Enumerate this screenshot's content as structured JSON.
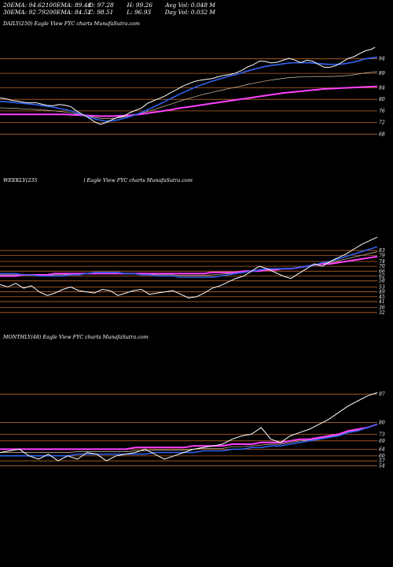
{
  "stats": [
    [
      {
        "label": "20EMA:",
        "value": "94.62"
      },
      {
        "label": "100EMA:",
        "value": "89.48"
      },
      {
        "label": "O:",
        "value": "97.28"
      },
      {
        "label": "H:",
        "value": "99.26"
      },
      {
        "label": "Avg Vol:",
        "value": "0.048 M"
      }
    ],
    [
      {
        "label": "30EMA:",
        "value": "92.79"
      },
      {
        "label": "200EMA:",
        "value": "84.52"
      },
      {
        "label": "C:",
        "value": "98.51"
      },
      {
        "label": "L:",
        "value": "96.93"
      },
      {
        "label": "Day Vol:",
        "value": "0.032  M"
      }
    ]
  ],
  "captions": {
    "daily": "DAILY(250) Eagle  View  FYC charts MunafaSutra.com",
    "weekly_left": "WEEKLY(235",
    "weekly_right": ") Eagle  View  FYC charts MunafaSutra.com",
    "monthly": "MONTHLY(48) Eagle  View  FYC charts MunafaSutra.com"
  },
  "colors": {
    "price": "#ffffff",
    "ema_fast": "#2f5fe8",
    "ema_slow": "#ff40ff",
    "level": "#b9652a",
    "ema_thin": "#d8c8a8"
  },
  "chart_data": [
    {
      "type": "line",
      "title": "DAILY(250)",
      "y_ticks": [
        94,
        89,
        84,
        80,
        76,
        72,
        68
      ],
      "ylim": [
        64,
        98
      ],
      "series": [
        {
          "role": "price",
          "values": [
            80.5,
            80.2,
            79.6,
            79.4,
            79.0,
            78.8,
            78.9,
            78.4,
            77.9,
            77.8,
            78.2,
            78.0,
            77.5,
            76.0,
            74.8,
            73.7,
            72.3,
            71.4,
            72.0,
            73.0,
            73.8,
            74.2,
            75.4,
            76.2,
            77.0,
            78.6,
            79.5,
            80.3,
            81.2,
            82.4,
            83.4,
            84.6,
            85.4,
            86.2,
            86.6,
            86.9,
            87.2,
            87.8,
            88.3,
            88.6,
            89.1,
            90.0,
            91.2,
            92.0,
            93.2,
            93.1,
            92.6,
            92.8,
            93.5,
            94.2,
            93.6,
            92.7,
            93.5,
            93.2,
            92.1,
            91.1,
            91.1,
            91.7,
            92.8,
            94.1,
            94.7,
            95.8,
            96.8,
            97.3,
            98.5
          ]
        },
        {
          "role": "ema_fast",
          "values": [
            79.3,
            79.2,
            79.0,
            78.8,
            78.6,
            78.4,
            78.2,
            77.9,
            77.6,
            77.3,
            76.9,
            76.5,
            76.0,
            75.4,
            74.7,
            74.0,
            73.3,
            72.8,
            72.5,
            72.6,
            72.9,
            73.4,
            74.0,
            74.7,
            75.5,
            76.4,
            77.3,
            78.3,
            79.3,
            80.3,
            81.3,
            82.3,
            83.2,
            84.1,
            84.9,
            85.6,
            86.3,
            86.9,
            87.5,
            88.1,
            88.6,
            89.2,
            89.8,
            90.4,
            90.9,
            91.4,
            91.7,
            92.0,
            92.3,
            92.6,
            92.7,
            92.7,
            92.7,
            92.6,
            92.4,
            92.2,
            92.1,
            92.1,
            92.2,
            92.5,
            92.9,
            93.4,
            94.0,
            94.3,
            94.6
          ]
        },
        {
          "role": "ema_slow",
          "values": [
            74.8,
            74.8,
            74.8,
            74.8,
            74.8,
            74.8,
            74.8,
            74.8,
            74.8,
            74.8,
            74.8,
            74.8,
            74.7,
            74.6,
            74.5,
            74.4,
            74.3,
            74.2,
            74.2,
            74.2,
            74.3,
            74.4,
            74.5,
            74.7,
            74.9,
            75.2,
            75.5,
            75.8,
            76.1,
            76.4,
            76.8,
            77.1,
            77.4,
            77.7,
            78.0,
            78.3,
            78.6,
            78.9,
            79.2,
            79.5,
            79.8,
            80.1,
            80.4,
            80.7,
            81.0,
            81.3,
            81.6,
            81.9,
            82.2,
            82.4,
            82.6,
            82.8,
            83.0,
            83.2,
            83.4,
            83.6,
            83.7,
            83.8,
            83.9,
            84.0,
            84.1,
            84.2,
            84.3,
            84.4,
            84.52
          ]
        }
      ]
    },
    {
      "type": "line",
      "title": "WEEKLY(235)",
      "y_ticks": [
        83,
        79,
        74,
        70,
        66,
        62,
        58,
        53,
        49,
        45,
        41,
        36,
        32
      ],
      "ylim": [
        28,
        96
      ],
      "series": [
        {
          "role": "price",
          "values": [
            55,
            53,
            56,
            52,
            54,
            49,
            46,
            48,
            51,
            53,
            50,
            49,
            48,
            51,
            50,
            46,
            48,
            50,
            51,
            47,
            48,
            49,
            50,
            47,
            44,
            45,
            48,
            52,
            54,
            57,
            60,
            62,
            66,
            70,
            68,
            65,
            62,
            60,
            64,
            68,
            72,
            70,
            74,
            77,
            80,
            84,
            88,
            91,
            94
          ]
        },
        {
          "role": "ema_fast",
          "values": [
            64,
            64,
            64,
            63,
            63,
            62,
            62,
            62,
            62,
            63,
            63,
            64,
            65,
            65,
            65,
            65,
            64,
            64,
            63,
            63,
            62,
            62,
            62,
            61,
            61,
            61,
            61,
            61,
            62,
            63,
            64,
            65,
            66,
            67,
            68,
            68,
            68,
            68,
            69,
            70,
            71,
            73,
            74,
            76,
            78,
            80,
            82,
            84,
            86
          ]
        },
        {
          "role": "ema_slow",
          "values": [
            62,
            62,
            62,
            63,
            63,
            63,
            63,
            64,
            64,
            64,
            64,
            64,
            64,
            64,
            64,
            64,
            64,
            64,
            64,
            64,
            64,
            64,
            64,
            64,
            64,
            64,
            64,
            65,
            65,
            65,
            65,
            66,
            66,
            66,
            67,
            67,
            68,
            68,
            69,
            70,
            71,
            72,
            72,
            73,
            74,
            75,
            76,
            77,
            78
          ]
        }
      ]
    },
    {
      "type": "line",
      "title": "MONTHLY(48)",
      "y_ticks": [
        97,
        80,
        73,
        69,
        64,
        60,
        57,
        54
      ],
      "ylim": [
        50,
        102
      ],
      "series": [
        {
          "role": "price",
          "values": [
            62,
            63,
            64,
            60,
            58,
            61,
            57,
            60,
            58,
            62,
            61,
            57,
            60,
            61,
            62,
            64,
            61,
            58,
            60,
            62,
            64,
            65,
            66,
            67,
            70,
            72,
            73,
            77,
            70,
            68,
            72,
            74,
            76,
            79,
            82,
            86,
            90,
            93,
            96,
            98
          ]
        },
        {
          "role": "ema_fast",
          "values": [
            60,
            60,
            60,
            60,
            60,
            60,
            60,
            60,
            61,
            61,
            61,
            61,
            61,
            61,
            61,
            61,
            62,
            62,
            62,
            62,
            62,
            63,
            63,
            63,
            64,
            64,
            65,
            65,
            66,
            66,
            67,
            68,
            69,
            70,
            71,
            72,
            74,
            75,
            77,
            79
          ]
        },
        {
          "role": "ema_slow",
          "values": [
            64,
            64,
            64,
            64,
            64,
            64,
            64,
            64,
            64,
            64,
            64,
            64,
            64,
            64,
            65,
            65,
            65,
            65,
            65,
            65,
            66,
            66,
            66,
            66,
            67,
            67,
            67,
            68,
            68,
            68,
            69,
            70,
            70,
            71,
            72,
            73,
            75,
            76,
            77,
            79
          ]
        }
      ]
    }
  ]
}
